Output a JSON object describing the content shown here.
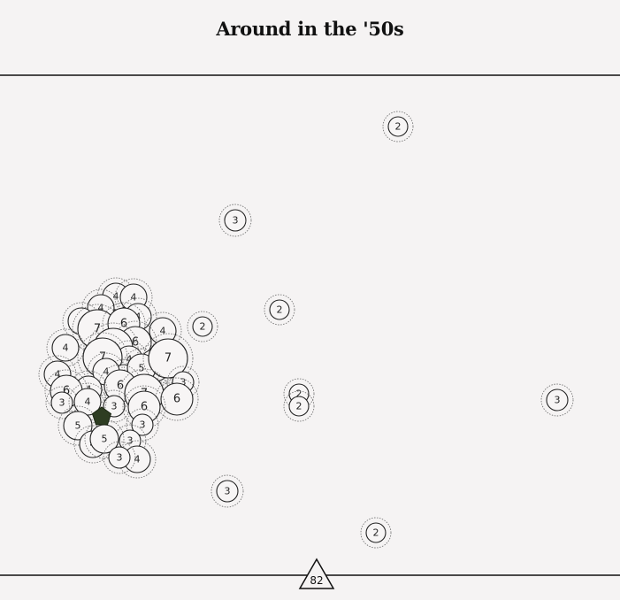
{
  "title": "Around in the '50s",
  "counter": "82",
  "colors": {
    "background": "#f5f3f3",
    "line": "#111111",
    "node_fill": "#f7f5f5",
    "player_fill": "#2e3d22"
  },
  "scattered_nodes": [
    2,
    3,
    2,
    2,
    2,
    2,
    3,
    3,
    2
  ],
  "cluster_nodes": [
    4,
    4,
    4,
    4,
    4,
    7,
    6,
    4,
    4,
    6,
    7,
    4,
    7,
    6,
    2,
    5,
    4,
    4,
    6,
    7,
    4,
    7,
    3,
    6,
    3,
    6,
    3,
    4,
    5,
    6,
    3,
    3,
    4,
    5,
    4,
    3
  ]
}
